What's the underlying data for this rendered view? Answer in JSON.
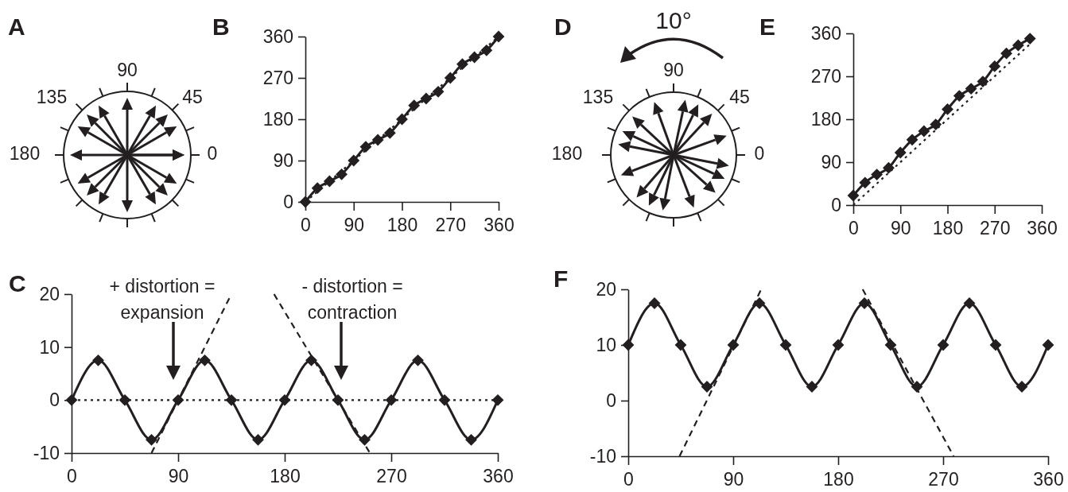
{
  "chart_data": [
    {
      "type": "other",
      "title": "A",
      "annotations": [
        "90",
        "135",
        "45",
        "180",
        "0"
      ]
    },
    {
      "type": "line",
      "title": "B",
      "x": [
        0,
        22.5,
        45,
        67.5,
        90,
        112.5,
        135,
        157.5,
        180,
        202.5,
        225,
        247.5,
        270,
        292.5,
        315,
        337.5,
        360
      ],
      "xlim": [
        0,
        360
      ],
      "xticks": [
        0,
        90,
        180,
        270,
        360
      ],
      "ylim": [
        0,
        360
      ],
      "yticks": [
        0,
        90,
        180,
        270,
        360
      ],
      "marker": "diamond",
      "series": [
        {
          "color": "#231f20",
          "values": [
            0,
            30,
            45,
            60,
            90,
            120,
            135,
            150,
            180,
            210,
            225,
            240,
            270,
            300,
            315,
            330,
            360
          ]
        },
        {
          "color": "#231f20",
          "x": [
            0,
            360
          ],
          "values": [
            0,
            360
          ],
          "line_style": "dotted",
          "marker": "none"
        }
      ]
    },
    {
      "type": "other",
      "title": "D",
      "annotations": [
        "10°",
        "90",
        "135",
        "45",
        "180",
        "0"
      ]
    },
    {
      "type": "line",
      "title": "E",
      "x": [
        0,
        22.5,
        45,
        67.5,
        90,
        112.5,
        135,
        157.5,
        180,
        202.5,
        225,
        247.5,
        270,
        292.5,
        315,
        337.5
      ],
      "xlim": [
        0,
        360
      ],
      "xticks": [
        0,
        90,
        180,
        270,
        360
      ],
      "ylim": [
        0,
        360
      ],
      "yticks": [
        0,
        90,
        180,
        270,
        360
      ],
      "marker": "diamond",
      "series": [
        {
          "color": "#231f20",
          "values": [
            20,
            47,
            64,
            78,
            110,
            137,
            155,
            169,
            201,
            229,
            244,
            259,
            291,
            318,
            335,
            349
          ]
        },
        {
          "color": "#231f20",
          "x": [
            0,
            340
          ],
          "values": [
            0,
            340
          ],
          "line_style": "dotted",
          "marker": "none"
        }
      ]
    },
    {
      "type": "line",
      "title": "C",
      "x": [
        0,
        22.5,
        45,
        67.5,
        90,
        112.5,
        135,
        157.5,
        180,
        202.5,
        225,
        247.5,
        270,
        292.5,
        315,
        337.5,
        360
      ],
      "xlim": [
        0,
        360
      ],
      "xticks": [
        0,
        90,
        180,
        270,
        360
      ],
      "ylim": [
        -10,
        20
      ],
      "yticks": [
        -10,
        0,
        10,
        20
      ],
      "marker": "diamond",
      "series": [
        {
          "color": "#231f20",
          "values": [
            0,
            7.5,
            0,
            -7.5,
            0,
            7.5,
            0,
            -7.5,
            0,
            7.5,
            0,
            -7.5,
            0,
            7.5,
            0,
            -7.5,
            0
          ]
        },
        {
          "color": "#231f20",
          "x": [
            67.5,
            135
          ],
          "values": [
            -10,
            20
          ],
          "line_style": "dashed",
          "marker": "none"
        },
        {
          "color": "#231f20",
          "x": [
            171,
            252
          ],
          "values": [
            20,
            -10
          ],
          "line_style": "dashed",
          "marker": "none"
        }
      ],
      "ref_lines": [
        {
          "axis": "y",
          "value": 0,
          "color": "#231f20",
          "line_style": "dotted"
        }
      ],
      "annotations": [
        "+ distortion =",
        "expansion",
        "- distortion =",
        "contraction"
      ]
    },
    {
      "type": "line",
      "title": "F",
      "x": [
        0,
        22.5,
        45,
        67.5,
        90,
        112.5,
        135,
        157.5,
        180,
        202.5,
        225,
        247.5,
        270,
        292.5,
        315,
        337.5,
        360
      ],
      "xlim": [
        0,
        360
      ],
      "xticks": [
        0,
        90,
        180,
        270,
        360
      ],
      "ylim": [
        -10,
        20
      ],
      "yticks": [
        -10,
        0,
        10,
        20
      ],
      "marker": "diamond",
      "series": [
        {
          "color": "#231f20",
          "values": [
            10,
            17.5,
            10,
            2.5,
            10,
            17.5,
            10,
            2.5,
            10,
            17.5,
            10,
            2.5,
            10,
            17.5,
            10,
            2.5,
            10
          ]
        },
        {
          "color": "#231f20",
          "x": [
            44,
            114
          ],
          "values": [
            -10,
            20
          ],
          "line_style": "dashed",
          "marker": "none"
        },
        {
          "color": "#231f20",
          "x": [
            201,
            279
          ],
          "values": [
            20,
            -10
          ],
          "line_style": "dashed",
          "marker": "none"
        }
      ]
    }
  ]
}
